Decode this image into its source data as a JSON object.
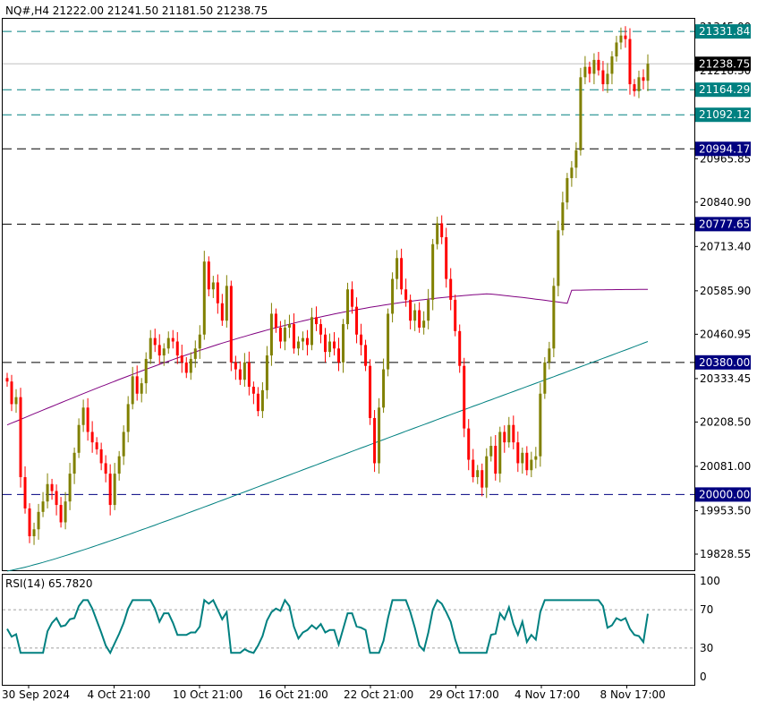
{
  "header": {
    "text": "NQ#,H4  21222.00 21241.50 21181.50 21238.75"
  },
  "colors": {
    "bull": "#808000",
    "bear": "#ff0000",
    "ma_fast": "#800080",
    "ma_slow": "#008080",
    "rsi_line": "#008080",
    "price_tag_bg": "#000000",
    "level_cyan_bg": "#008080",
    "level_navy_bg": "#000080",
    "level_line_cyan": "#008080",
    "level_line_black": "#000000",
    "level_line_navy": "#000080"
  },
  "chart_data": [
    {
      "type": "candlestick",
      "title": "NQ#,H4",
      "ohlc_last": {
        "open": 21222.0,
        "high": 21241.5,
        "low": 21181.5,
        "close": 21238.75
      },
      "current_price": 21238.75,
      "ylim": [
        19780,
        21360
      ],
      "y_ticks": [
        "21345.00",
        "21218.30",
        "20965.85",
        "20840.90",
        "20713.40",
        "20585.90",
        "20460.95",
        "20333.45",
        "20208.50",
        "20081.00",
        "19953.50",
        "19828.55"
      ],
      "x_ticks": [
        "30 Sep 2024",
        "4 Oct 21:00",
        "10 Oct 21:00",
        "16 Oct 21:00",
        "22 Oct 21:00",
        "29 Oct 17:00",
        "4 Nov 17:00",
        "8 Nov 17:00"
      ],
      "levels": [
        {
          "label": "21331.84",
          "value": 21331.84,
          "style": "cyan"
        },
        {
          "label": "21164.29",
          "value": 21164.29,
          "style": "cyan"
        },
        {
          "label": "21092.12",
          "value": 21092.12,
          "style": "cyan"
        },
        {
          "label": "20994.17",
          "value": 20994.17,
          "style": "black"
        },
        {
          "label": "20777.65",
          "value": 20777.65,
          "style": "black"
        },
        {
          "label": "20380.00",
          "value": 20380.0,
          "style": "black"
        },
        {
          "label": "20000.00",
          "value": 20000.0,
          "style": "navy"
        }
      ],
      "close_series": [
        20325,
        20260,
        20280,
        20050,
        19960,
        19880,
        19900,
        19950,
        19980,
        20030,
        20010,
        19970,
        19920,
        19980,
        20060,
        20120,
        20200,
        20250,
        20180,
        20150,
        20130,
        20090,
        20060,
        19970,
        20060,
        20110,
        20180,
        20260,
        20340,
        20290,
        20320,
        20390,
        20450,
        20430,
        20400,
        20420,
        20450,
        20440,
        20400,
        20380,
        20350,
        20390,
        20420,
        20460,
        20670,
        20590,
        20610,
        20550,
        20500,
        20600,
        20380,
        20360,
        20330,
        20380,
        20310,
        20290,
        20240,
        20300,
        20400,
        20520,
        20480,
        20440,
        20480,
        20490,
        20420,
        20440,
        20450,
        20430,
        20510,
        20490,
        20460,
        20410,
        20440,
        20420,
        20380,
        20490,
        20590,
        20540,
        20460,
        20430,
        20370,
        20220,
        20090,
        20250,
        20360,
        20520,
        20620,
        20680,
        20590,
        20560,
        20500,
        20530,
        20480,
        20500,
        20560,
        20720,
        20780,
        20740,
        20620,
        20560,
        20470,
        20370,
        20190,
        20100,
        20050,
        20070,
        20020,
        20110,
        20140,
        20060,
        20180,
        20150,
        20200,
        20150,
        20090,
        20120,
        20070,
        20100,
        20110,
        20290,
        20380,
        20420,
        20600,
        20760,
        20840,
        20910,
        20940,
        20990,
        21200,
        21230,
        21210,
        21250,
        21220,
        21180,
        21210,
        21260,
        21300,
        21320,
        21310,
        21180,
        21160,
        21200,
        21190,
        21238.75
      ],
      "sma_fast": {
        "start": 20200,
        "end": 20590
      },
      "sma_slow": {
        "start": 19780,
        "end": 20440
      }
    },
    {
      "type": "line",
      "title": "RSI(14)",
      "series": [
        {
          "name": "RSI(14)",
          "last_value": 65.782
        }
      ],
      "header": "RSI(14) 65.7820",
      "ylim": [
        0,
        100
      ],
      "y_ticks": [
        "100",
        "70",
        "30",
        "0"
      ],
      "levels": [
        70,
        30
      ]
    }
  ]
}
